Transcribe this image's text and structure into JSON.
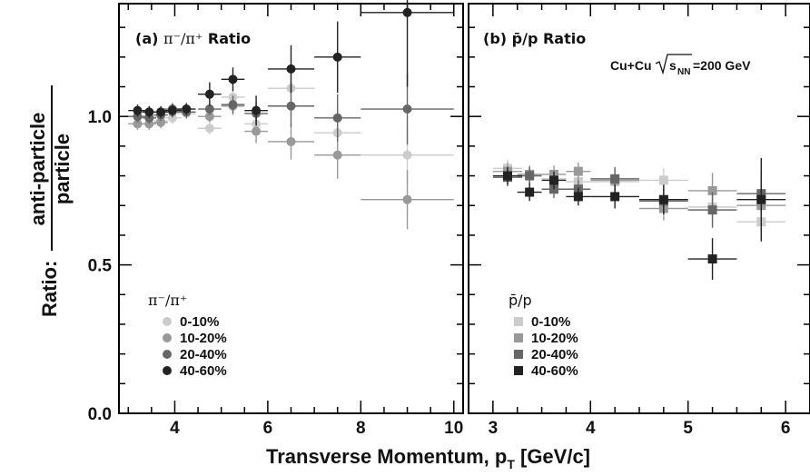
{
  "chart_data": [
    {
      "type": "scatter",
      "panel_label": "(a)",
      "title_ratio": "π⁻/π⁺",
      "title_word": "Ratio",
      "xlim": [
        2.8,
        10.2
      ],
      "ylim": [
        0.0,
        1.38
      ],
      "xticks": [
        4,
        6,
        8,
        10
      ],
      "yticks": [
        0.0,
        0.5,
        1.0
      ],
      "ytick_labels": [
        "0.0",
        "0.5",
        "1.0"
      ],
      "legend_title": "π⁻/π⁺",
      "legend_position": "bottom-left",
      "marker": "circle",
      "series": [
        {
          "name": "0-10%",
          "color": "#cccccc",
          "points": [
            [
              3.2,
              1.0,
              0.2,
              0.02
            ],
            [
              3.45,
              1.0,
              0.15,
              0.02
            ],
            [
              3.7,
              0.985,
              0.15,
              0.02
            ],
            [
              3.95,
              0.995,
              0.2,
              0.02
            ],
            [
              4.25,
              1.01,
              0.2,
              0.02
            ],
            [
              4.75,
              0.96,
              0.25,
              0.02
            ],
            [
              5.25,
              1.065,
              0.25,
              0.03
            ],
            [
              5.75,
              0.975,
              0.25,
              0.04
            ],
            [
              6.5,
              1.095,
              0.5,
              0.06
            ],
            [
              7.5,
              0.945,
              0.5,
              0.07
            ],
            [
              9.0,
              0.87,
              1.0,
              0.1
            ]
          ]
        },
        {
          "name": "10-20%",
          "color": "#999999",
          "points": [
            [
              3.2,
              0.975,
              0.2,
              0.02
            ],
            [
              3.45,
              0.975,
              0.15,
              0.02
            ],
            [
              3.7,
              0.98,
              0.15,
              0.02
            ],
            [
              3.95,
              1.015,
              0.2,
              0.02
            ],
            [
              4.25,
              1.015,
              0.2,
              0.02
            ],
            [
              4.75,
              1.0,
              0.25,
              0.02
            ],
            [
              5.25,
              1.035,
              0.25,
              0.03
            ],
            [
              5.75,
              0.95,
              0.25,
              0.04
            ],
            [
              6.5,
              0.915,
              0.5,
              0.06
            ],
            [
              7.5,
              0.87,
              0.5,
              0.08
            ],
            [
              9.0,
              0.72,
              1.0,
              0.1
            ]
          ]
        },
        {
          "name": "20-40%",
          "color": "#666666",
          "points": [
            [
              3.2,
              1.0,
              0.2,
              0.02
            ],
            [
              3.45,
              0.995,
              0.15,
              0.02
            ],
            [
              3.7,
              1.005,
              0.15,
              0.02
            ],
            [
              3.95,
              1.025,
              0.2,
              0.02
            ],
            [
              4.25,
              1.015,
              0.2,
              0.02
            ],
            [
              4.75,
              1.025,
              0.25,
              0.02
            ],
            [
              5.25,
              1.04,
              0.25,
              0.03
            ],
            [
              5.75,
              1.01,
              0.25,
              0.04
            ],
            [
              6.5,
              1.035,
              0.5,
              0.07
            ],
            [
              7.5,
              0.995,
              0.5,
              0.08
            ],
            [
              9.0,
              1.025,
              1.0,
              0.12
            ]
          ]
        },
        {
          "name": "40-60%",
          "color": "#222222",
          "points": [
            [
              3.2,
              1.02,
              0.2,
              0.02
            ],
            [
              3.45,
              1.015,
              0.15,
              0.02
            ],
            [
              3.7,
              1.015,
              0.15,
              0.02
            ],
            [
              3.95,
              1.02,
              0.2,
              0.02
            ],
            [
              4.25,
              1.025,
              0.2,
              0.02
            ],
            [
              4.75,
              1.075,
              0.25,
              0.04
            ],
            [
              5.25,
              1.125,
              0.25,
              0.04
            ],
            [
              5.75,
              1.02,
              0.25,
              0.05
            ],
            [
              6.5,
              1.16,
              0.5,
              0.08
            ],
            [
              7.5,
              1.2,
              0.5,
              0.12
            ],
            [
              9.0,
              1.35,
              1.0,
              0.25
            ]
          ]
        }
      ]
    },
    {
      "type": "scatter",
      "panel_label": "(b)",
      "title_ratio": "p̄/p",
      "title_word": "Ratio",
      "system_prefix": "Cu+Cu",
      "system_energy": "=200 GeV",
      "system_sub": "NN",
      "xlim": [
        2.75,
        6.25
      ],
      "ylim": [
        0.0,
        1.38
      ],
      "xticks": [
        3,
        4,
        5,
        6
      ],
      "legend_title": "p̄/p",
      "legend_position": "bottom-left",
      "marker": "square",
      "series": [
        {
          "name": "0-10%",
          "color": "#cccccc",
          "points": [
            [
              3.15,
              0.825,
              0.15,
              0.03
            ],
            [
              3.375,
              0.8,
              0.125,
              0.03
            ],
            [
              3.625,
              0.79,
              0.125,
              0.03
            ],
            [
              3.875,
              0.78,
              0.125,
              0.03
            ],
            [
              4.25,
              0.78,
              0.25,
              0.04
            ],
            [
              4.75,
              0.785,
              0.25,
              0.04
            ],
            [
              5.25,
              0.695,
              0.25,
              0.06
            ],
            [
              5.75,
              0.645,
              0.25,
              0.07
            ]
          ]
        },
        {
          "name": "10-20%",
          "color": "#999999",
          "points": [
            [
              3.15,
              0.815,
              0.15,
              0.03
            ],
            [
              3.375,
              0.805,
              0.125,
              0.03
            ],
            [
              3.625,
              0.805,
              0.125,
              0.03
            ],
            [
              3.875,
              0.815,
              0.125,
              0.03
            ],
            [
              4.25,
              0.785,
              0.25,
              0.04
            ],
            [
              4.75,
              0.69,
              0.25,
              0.04
            ],
            [
              5.25,
              0.75,
              0.25,
              0.06
            ],
            [
              5.75,
              0.7,
              0.25,
              0.07
            ]
          ]
        },
        {
          "name": "20-40%",
          "color": "#666666",
          "points": [
            [
              3.15,
              0.795,
              0.15,
              0.03
            ],
            [
              3.375,
              0.8,
              0.125,
              0.03
            ],
            [
              3.625,
              0.755,
              0.125,
              0.03
            ],
            [
              3.875,
              0.755,
              0.125,
              0.03
            ],
            [
              4.25,
              0.79,
              0.25,
              0.04
            ],
            [
              4.75,
              0.715,
              0.25,
              0.04
            ],
            [
              5.25,
              0.685,
              0.25,
              0.06
            ],
            [
              5.75,
              0.74,
              0.25,
              0.08
            ]
          ]
        },
        {
          "name": "40-60%",
          "color": "#222222",
          "points": [
            [
              3.15,
              0.8,
              0.15,
              0.03
            ],
            [
              3.375,
              0.745,
              0.125,
              0.03
            ],
            [
              3.625,
              0.785,
              0.125,
              0.03
            ],
            [
              3.875,
              0.73,
              0.125,
              0.03
            ],
            [
              4.25,
              0.73,
              0.25,
              0.04
            ],
            [
              4.75,
              0.72,
              0.25,
              0.05
            ],
            [
              5.25,
              0.52,
              0.25,
              0.07
            ],
            [
              5.75,
              0.72,
              0.25,
              0.14
            ]
          ]
        }
      ]
    }
  ],
  "labels": {
    "ylabel_prefix": "Ratio:",
    "ylabel_numerator": "anti-particle",
    "ylabel_denominator": "particle",
    "xlabel_main": "Transverse Momentum, p",
    "xlabel_sub": "T",
    "xlabel_unit": " [GeV/c]"
  }
}
